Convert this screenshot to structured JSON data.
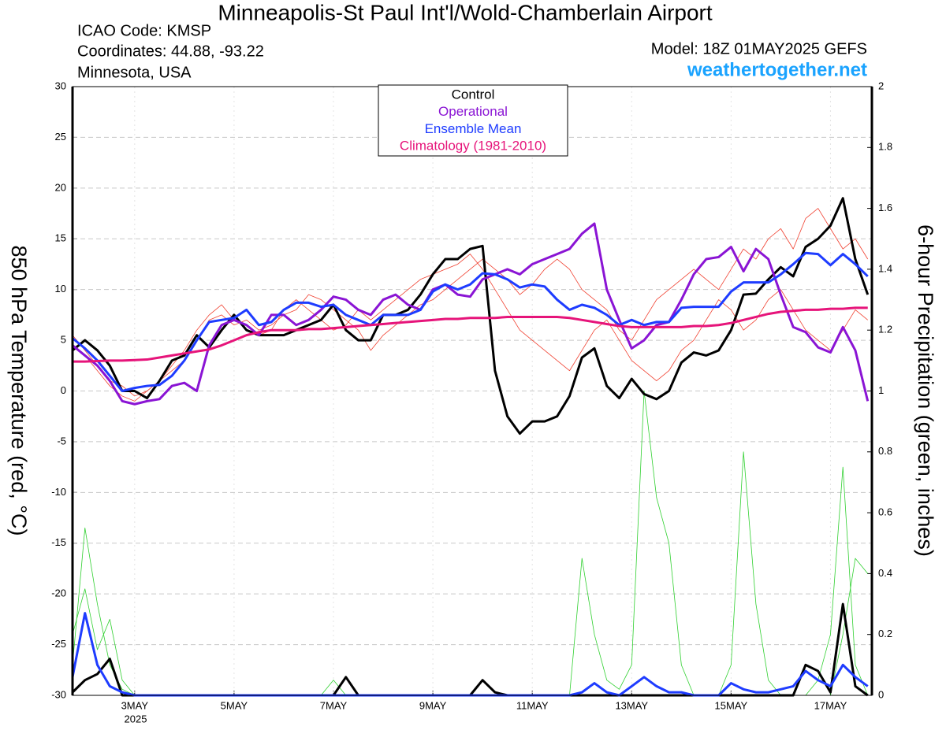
{
  "chart_data": {
    "type": "line",
    "title": "Minneapolis-St Paul Int'l/Wold-Chamberlain Airport",
    "header_lines": [
      "ICAO Code: KMSP",
      "Coordinates: 44.88, -93.22",
      "Minnesota, USA"
    ],
    "model": "Model: 18Z 01MAY2025 GEFS",
    "site": "weathertogether.net",
    "ylabel": "850 hPa Temperature (red, °C)",
    "y2label": "6-hour Precipitation (green, inches)",
    "year_label": "2025",
    "grid": true,
    "xlim": [
      0,
      386
    ],
    "xticks": [
      {
        "value": 30,
        "label": "3MAY"
      },
      {
        "value": 78,
        "label": "5MAY"
      },
      {
        "value": 126,
        "label": "7MAY"
      },
      {
        "value": 174,
        "label": "9MAY"
      },
      {
        "value": 222,
        "label": "11MAY"
      },
      {
        "value": 270,
        "label": "13MAY"
      },
      {
        "value": 318,
        "label": "15MAY"
      },
      {
        "value": 366,
        "label": "17MAY"
      }
    ],
    "ylim": [
      -30,
      30
    ],
    "yticks": [
      -30,
      -25,
      -20,
      -15,
      -10,
      -5,
      0,
      5,
      10,
      15,
      20,
      25,
      30
    ],
    "y2lim": [
      0,
      2
    ],
    "y2ticks": [
      0,
      0.2,
      0.4,
      0.6,
      0.8,
      1,
      1.2,
      1.4,
      1.6,
      1.8,
      2
    ],
    "x": [
      0,
      6,
      12,
      18,
      24,
      30,
      36,
      42,
      48,
      54,
      60,
      66,
      72,
      78,
      84,
      90,
      96,
      102,
      108,
      114,
      120,
      126,
      132,
      138,
      144,
      150,
      156,
      162,
      168,
      174,
      180,
      186,
      192,
      198,
      204,
      210,
      216,
      222,
      228,
      234,
      240,
      246,
      252,
      258,
      264,
      270,
      276,
      282,
      288,
      294,
      300,
      306,
      312,
      318,
      324,
      330,
      336,
      342,
      348,
      354,
      360,
      366,
      372,
      378,
      384
    ],
    "series": [
      {
        "color": "#f04030",
        "width": 0.8,
        "values": [
          5.5,
          4,
          2.5,
          1,
          0.5,
          -0.5,
          0,
          1,
          2,
          3,
          5,
          7,
          7.5,
          6.5,
          7,
          6,
          6.5,
          7.5,
          8,
          9.5,
          9,
          8,
          7,
          6,
          4,
          5.5,
          6.5,
          7.5,
          8.5,
          9,
          10,
          11,
          12,
          13,
          12,
          11,
          9.5,
          10.5,
          12,
          13,
          12,
          10,
          9,
          8,
          6,
          5,
          7,
          9,
          10,
          11,
          12,
          11,
          10,
          12,
          14,
          13,
          15,
          16,
          14,
          17,
          18,
          16,
          14,
          15,
          13
        ]
      },
      {
        "color": "#f04030",
        "width": 0.8,
        "values": [
          4.5,
          3.5,
          2,
          0.5,
          -0.5,
          -1,
          0,
          1,
          2.5,
          4,
          6,
          7.5,
          8.5,
          7,
          6.5,
          5.5,
          6,
          8,
          9,
          8,
          7,
          6,
          6.5,
          8,
          7,
          8,
          9,
          10,
          11,
          11.5,
          12,
          12.5,
          13.5,
          12,
          10,
          8,
          6,
          5,
          4,
          3,
          2,
          4,
          6,
          7,
          5,
          3,
          2,
          1,
          2,
          4,
          5,
          7,
          9,
          8,
          6,
          7,
          9,
          10,
          8,
          6,
          5,
          4,
          6,
          8,
          7
        ]
      },
      {
        "color": "#30d030",
        "width": 0.8,
        "axis": "y2",
        "values": [
          0.1,
          0.55,
          0.3,
          0.1,
          0.02,
          0,
          0,
          0,
          0,
          0,
          0,
          0,
          0,
          0,
          0,
          0,
          0,
          0,
          0,
          0,
          0,
          0,
          0,
          0,
          0,
          0,
          0,
          0,
          0,
          0,
          0,
          0,
          0,
          0,
          0,
          0,
          0,
          0,
          0,
          0,
          0,
          0.45,
          0.2,
          0.05,
          0.02,
          0.1,
          1.0,
          0.65,
          0.5,
          0.1,
          0,
          0,
          0,
          0,
          0,
          0,
          0,
          0,
          0,
          0,
          0.05,
          0.2,
          0.75,
          0.1,
          0
        ]
      },
      {
        "color": "#30d030",
        "width": 0.8,
        "axis": "y2",
        "values": [
          0.2,
          0.35,
          0.15,
          0.25,
          0.05,
          0,
          0,
          0,
          0,
          0,
          0,
          0,
          0,
          0,
          0,
          0,
          0,
          0,
          0,
          0,
          0,
          0.05,
          0,
          0,
          0,
          0,
          0,
          0,
          0,
          0,
          0,
          0,
          0,
          0,
          0,
          0,
          0,
          0,
          0,
          0,
          0,
          0,
          0,
          0,
          0,
          0,
          0,
          0,
          0,
          0,
          0,
          0,
          0,
          0.1,
          0.8,
          0.3,
          0.05,
          0,
          0,
          0,
          0,
          0,
          0.2,
          0.45,
          0.4
        ]
      },
      {
        "name": "Control",
        "color": "#000000",
        "width": 3,
        "values": [
          4,
          5,
          4,
          2.5,
          0,
          0,
          -0.7,
          1,
          3,
          3.5,
          5.5,
          4.3,
          6,
          7.5,
          6,
          5.5,
          5.5,
          5.5,
          6,
          6.5,
          7,
          8.5,
          6,
          5,
          5,
          7.5,
          7.5,
          8,
          9.5,
          11.5,
          13,
          13,
          14,
          14.3,
          2,
          -2.5,
          -4.2,
          -3,
          -3,
          -2.5,
          -0.5,
          3.3,
          4.2,
          0.5,
          -0.7,
          1.2,
          -0.3,
          -0.8,
          0,
          2.8,
          3.8,
          3.5,
          4,
          6,
          9.5,
          9.6,
          11,
          12.2,
          11.3,
          14.2,
          15,
          16.3,
          19,
          13,
          9.5
        ]
      },
      {
        "name": "Operational",
        "color": "#8a14d4",
        "width": 3,
        "values": [
          4.5,
          3.5,
          2.5,
          1,
          -1,
          -1.3,
          -1,
          -0.8,
          0.5,
          0.8,
          0,
          4.5,
          6.5,
          7,
          6.5,
          5.5,
          7.5,
          7.5,
          6.5,
          7,
          8,
          9.3,
          9,
          8,
          7.5,
          9,
          9.5,
          8.5,
          8,
          10,
          10.5,
          9.5,
          9.3,
          11,
          11.5,
          12,
          11.5,
          12.5,
          13,
          13.5,
          14,
          15.5,
          16.5,
          10,
          7,
          4.2,
          5,
          6.5,
          6.8,
          9,
          11.5,
          13,
          13.2,
          14.2,
          11.8,
          14,
          13,
          9.5,
          6.3,
          5.8,
          4.3,
          3.8,
          6.3,
          4,
          -1
        ]
      },
      {
        "name": "Ensemble Mean",
        "color": "#1e3cff",
        "width": 3,
        "values": [
          5.2,
          4.2,
          3,
          1.5,
          0,
          0.3,
          0.5,
          0.6,
          1.5,
          3,
          5,
          6.8,
          7,
          7.2,
          8,
          6.5,
          6.8,
          8,
          8.7,
          8.7,
          8.3,
          8.5,
          7.5,
          7,
          6.5,
          7.5,
          7.5,
          7.5,
          8,
          9.8,
          10.5,
          10,
          10.5,
          11.6,
          11.5,
          11,
          10.2,
          10.5,
          10.3,
          9,
          8,
          8.5,
          8.2,
          7.5,
          6.5,
          7,
          6.5,
          6.8,
          6.8,
          8.2,
          8.3,
          8.3,
          8.3,
          9.8,
          10.7,
          10.7,
          10.7,
          11.5,
          12.5,
          13.6,
          13.5,
          12.4,
          13.5,
          12.5,
          11.3
        ]
      },
      {
        "name": "Climatology (1981-2010)",
        "color": "#e6147a",
        "width": 3,
        "values": [
          2.9,
          2.9,
          2.95,
          3.0,
          3.0,
          3.05,
          3.1,
          3.3,
          3.5,
          3.7,
          3.9,
          4.1,
          4.5,
          5.0,
          5.5,
          5.8,
          6.0,
          6.0,
          6.0,
          6.1,
          6.1,
          6.2,
          6.3,
          6.4,
          6.5,
          6.6,
          6.7,
          6.8,
          6.9,
          7.0,
          7.1,
          7.1,
          7.2,
          7.2,
          7.2,
          7.3,
          7.3,
          7.3,
          7.3,
          7.3,
          7.2,
          7.0,
          6.8,
          6.6,
          6.4,
          6.3,
          6.3,
          6.3,
          6.3,
          6.3,
          6.4,
          6.4,
          6.5,
          6.7,
          7.0,
          7.3,
          7.6,
          7.8,
          7.9,
          8.0,
          8.0,
          8.1,
          8.1,
          8.2,
          8.2
        ]
      },
      {
        "color": "#000000",
        "width": 3,
        "axis": "y2",
        "values": [
          0.01,
          0.05,
          0.07,
          0.12,
          0,
          0,
          0,
          0,
          0,
          0,
          0,
          0,
          0,
          0,
          0,
          0,
          0,
          0,
          0,
          0,
          0,
          0,
          0.06,
          0,
          0,
          0,
          0,
          0,
          0,
          0,
          0,
          0,
          0,
          0.05,
          0.01,
          0,
          0,
          0,
          0,
          0,
          0,
          0,
          0,
          0,
          0,
          0,
          0,
          0,
          0,
          0,
          0,
          0,
          0,
          0,
          0,
          0,
          0,
          0,
          0,
          0.1,
          0.08,
          0.01,
          0.3,
          0.03,
          0
        ]
      },
      {
        "color": "#1e3cff",
        "width": 3,
        "axis": "y2",
        "values": [
          0.06,
          0.27,
          0.1,
          0.03,
          0.01,
          0,
          0,
          0,
          0,
          0,
          0,
          0,
          0,
          0,
          0,
          0,
          0,
          0,
          0,
          0,
          0,
          0,
          0,
          0,
          0,
          0,
          0,
          0,
          0,
          0,
          0,
          0,
          0,
          0,
          0,
          0,
          0,
          0,
          0,
          0,
          0,
          0.01,
          0.04,
          0.01,
          0,
          0.03,
          0.06,
          0.03,
          0.01,
          0.01,
          0,
          0,
          0,
          0.04,
          0.02,
          0.01,
          0.01,
          0.02,
          0.03,
          0.08,
          0.05,
          0.03,
          0.1,
          0.06,
          0.03
        ]
      }
    ]
  }
}
